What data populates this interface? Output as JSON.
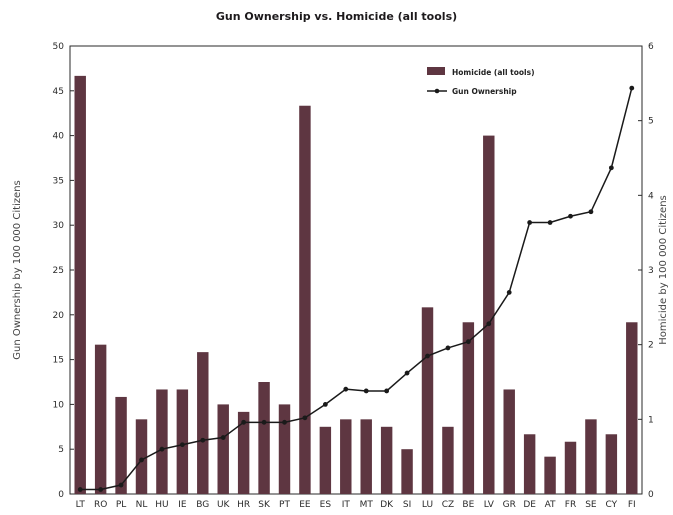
{
  "chart_data": {
    "type": "bar",
    "title": "Gun Ownership vs. Homicide (all tools)",
    "xlabel": "",
    "ylabel_left": "Gun Ownership by 100 000 Citizens",
    "ylabel_right": "Homicide by 100 000 Citizens",
    "categories": [
      "LT",
      "RO",
      "PL",
      "NL",
      "HU",
      "IE",
      "BG",
      "UK",
      "HR",
      "SK",
      "PT",
      "EE",
      "ES",
      "IT",
      "MT",
      "DK",
      "SI",
      "LU",
      "CZ",
      "BE",
      "LV",
      "GR",
      "DE",
      "AT",
      "FR",
      "SE",
      "CY",
      "FI"
    ],
    "ylim_left": [
      0,
      50
    ],
    "ylim_right": [
      0,
      6
    ],
    "yticks_left": [
      "0",
      "5",
      "10",
      "15",
      "20",
      "25",
      "30",
      "35",
      "40",
      "45",
      "50"
    ],
    "yticks_right": [
      "0",
      "1",
      "2",
      "3",
      "4",
      "5",
      "6"
    ],
    "legend_position": "top-right",
    "grid": false,
    "series": [
      {
        "name": "Homicide (all tools)",
        "type": "bar",
        "axis": "right",
        "color": "#5e3641",
        "values": [
          5.6,
          2.0,
          1.3,
          1.0,
          1.4,
          1.4,
          1.9,
          1.2,
          1.1,
          1.5,
          1.2,
          5.2,
          0.9,
          1.0,
          1.0,
          0.9,
          0.6,
          2.5,
          0.9,
          2.3,
          4.8,
          1.4,
          0.8,
          0.5,
          0.7,
          1.0,
          0.8,
          2.3
        ]
      },
      {
        "name": "Gun Ownership",
        "type": "line",
        "axis": "left",
        "color": "#1a1a1a",
        "values": [
          0.5,
          0.5,
          1.0,
          3.8,
          5.0,
          5.5,
          6.0,
          6.3,
          8.0,
          8.0,
          8.0,
          8.5,
          10.0,
          11.7,
          11.5,
          11.5,
          13.5,
          15.4,
          16.3,
          17.0,
          19.0,
          22.5,
          30.3,
          30.3,
          31.0,
          31.5,
          36.4,
          45.3
        ]
      }
    ]
  }
}
